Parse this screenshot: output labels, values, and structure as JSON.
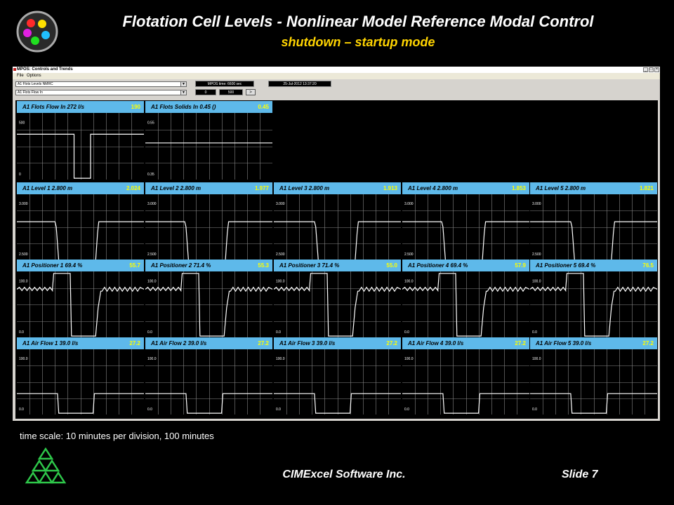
{
  "slide": {
    "title": "Flotation Cell Levels - Nonlinear Model Reference Modal Control",
    "subtitle": "shutdown – startup mode",
    "footnote": "time scale: 10 minutes per division, 100 minutes",
    "company": "CIMExcel Software Inc.",
    "slide_number": "Slide 7",
    "colors": {
      "title": "#ffffff",
      "subtitle": "#ffd400",
      "header_band": "#5eb9ea",
      "header_value": "#ffff00",
      "trace": "#ffffff",
      "gridline": "#888888"
    },
    "logo_icon": "color-dots-logo-icon",
    "brand_icon": "green-triangle-logo-icon"
  },
  "window": {
    "title": "MPOS: Controls and Trends",
    "menu": [
      "File",
      "Options"
    ],
    "combo1": "A1 Flots Levels NMRC",
    "combo2": "A1 Flots Flow In",
    "mpos_time": "MPOS time: 6600  sec",
    "date": "25-Jul-2012  13:37:20",
    "range_start": "0",
    "range_end": "500",
    "go_label": ">",
    "btn_min": "_",
    "btn_max": "□",
    "btn_close": "×"
  },
  "panels": [
    {
      "row": 0,
      "col": 0,
      "title": "A1 Flots Flow In   272  l/s",
      "value": "190",
      "ymax": "500",
      "ymin": "0"
    },
    {
      "row": 0,
      "col": 1,
      "title": "A1 Flots Solids In   0.45  ()",
      "value": "0.45",
      "ymax": "0.55",
      "ymin": "0.35"
    },
    {
      "row": 1,
      "col": 0,
      "title": "A1 Level 1   2.800  m",
      "value": "2.024",
      "ymax": "3.000",
      "ymin": "2.500"
    },
    {
      "row": 1,
      "col": 1,
      "title": "A1 Level 2   2.800  m",
      "value": "1.977",
      "ymax": "3.000",
      "ymin": "2.500"
    },
    {
      "row": 1,
      "col": 2,
      "title": "A1 Level 3   2.800  m",
      "value": "1.913",
      "ymax": "3.000",
      "ymin": "2.500"
    },
    {
      "row": 1,
      "col": 3,
      "title": "A1 Level 4   2.800  m",
      "value": "1.853",
      "ymax": "3.000",
      "ymin": "2.500"
    },
    {
      "row": 1,
      "col": 4,
      "title": "A1 Level 5   2.800  m",
      "value": "1.821",
      "ymax": "3.000",
      "ymin": "2.500"
    },
    {
      "row": 2,
      "col": 0,
      "title": "A1 Positioner 1   69.4  %",
      "value": "55.7",
      "ymax": "100.0",
      "ymin": "0.0"
    },
    {
      "row": 2,
      "col": 1,
      "title": "A1 Positioner 2   71.4  %",
      "value": "55.3",
      "ymax": "100.0",
      "ymin": "0.0"
    },
    {
      "row": 2,
      "col": 2,
      "title": "A1 Positioner 3   71.4  %",
      "value": "55.0",
      "ymax": "100.0",
      "ymin": "0.0"
    },
    {
      "row": 2,
      "col": 3,
      "title": "A1 Positioner 4   69.4  %",
      "value": "57.9",
      "ymax": "100.0",
      "ymin": "0.0"
    },
    {
      "row": 2,
      "col": 4,
      "title": "A1 Positioner 5   69.4  %",
      "value": "76.5",
      "ymax": "100.0",
      "ymin": "0.0"
    },
    {
      "row": 3,
      "col": 0,
      "title": "A1 Air Flow 1   39.0  l/s",
      "value": "27.2",
      "ymax": "100.0",
      "ymin": "0.0"
    },
    {
      "row": 3,
      "col": 1,
      "title": "A1 Air Flow 2   39.0  l/s",
      "value": "27.2",
      "ymax": "100.0",
      "ymin": "0.0"
    },
    {
      "row": 3,
      "col": 2,
      "title": "A1 Air Flow 3   39.0  l/s",
      "value": "27.2",
      "ymax": "100.0",
      "ymin": "0.0"
    },
    {
      "row": 3,
      "col": 3,
      "title": "A1 Air Flow 4   39.0  l/s",
      "value": "27.2",
      "ymax": "100.0",
      "ymin": "0.0"
    },
    {
      "row": 3,
      "col": 4,
      "title": "A1 Air Flow 5   39.0  l/s",
      "value": "27.2",
      "ymax": "100.0",
      "ymin": "0.0"
    }
  ]
}
